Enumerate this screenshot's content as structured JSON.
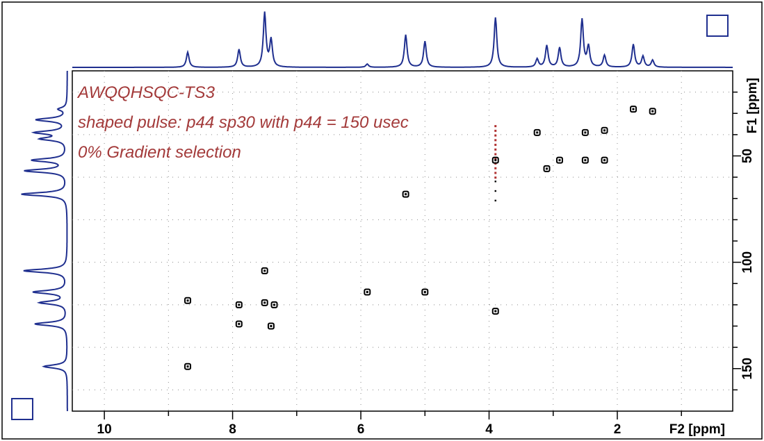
{
  "chart_data": {
    "type": "scatter",
    "subtype": "2D NMR HSQC contour map",
    "annotations": [
      "AWQQHSQC-TS3",
      "shaped pulse: p44 sp30 with  p44 = 150 usec",
      "0% Gradient selection"
    ],
    "xlabel": "F2 [ppm]",
    "ylabel": "F1 [ppm]",
    "xlim": [
      10.5,
      0.2
    ],
    "ylim": [
      10,
      170
    ],
    "x_reversed": true,
    "x_ticks": [
      "10",
      "8",
      "6",
      "4",
      "2"
    ],
    "y_ticks": [
      "50",
      "100",
      "150"
    ],
    "grid": true,
    "cross_peaks": [
      {
        "x": 1.75,
        "y": 28
      },
      {
        "x": 1.45,
        "y": 29
      },
      {
        "x": 2.2,
        "y": 38
      },
      {
        "x": 2.5,
        "y": 39
      },
      {
        "x": 3.25,
        "y": 39
      },
      {
        "x": 3.9,
        "y": 52
      },
      {
        "x": 2.9,
        "y": 52
      },
      {
        "x": 2.5,
        "y": 52
      },
      {
        "x": 2.2,
        "y": 52
      },
      {
        "x": 3.1,
        "y": 56
      },
      {
        "x": 5.3,
        "y": 68
      },
      {
        "x": 7.5,
        "y": 104
      },
      {
        "x": 5.9,
        "y": 114
      },
      {
        "x": 5.0,
        "y": 114
      },
      {
        "x": 8.7,
        "y": 118
      },
      {
        "x": 7.9,
        "y": 120
      },
      {
        "x": 7.5,
        "y": 119
      },
      {
        "x": 7.35,
        "y": 120
      },
      {
        "x": 3.9,
        "y": 123
      },
      {
        "x": 7.9,
        "y": 129
      },
      {
        "x": 7.4,
        "y": 130
      },
      {
        "x": 8.7,
        "y": 149
      }
    ],
    "artifact_streak": {
      "x": 3.9,
      "y_from": 36,
      "y_to": 62,
      "color": "#b03030"
    },
    "projection_f2": [
      {
        "x": 8.7,
        "h": 0.28
      },
      {
        "x": 7.9,
        "h": 0.33
      },
      {
        "x": 7.5,
        "h": 1.0
      },
      {
        "x": 7.4,
        "h": 0.5
      },
      {
        "x": 5.9,
        "h": 0.06
      },
      {
        "x": 5.3,
        "h": 0.6
      },
      {
        "x": 5.0,
        "h": 0.48
      },
      {
        "x": 3.9,
        "h": 0.92
      },
      {
        "x": 3.25,
        "h": 0.15
      },
      {
        "x": 3.1,
        "h": 0.4
      },
      {
        "x": 2.9,
        "h": 0.36
      },
      {
        "x": 2.55,
        "h": 0.88
      },
      {
        "x": 2.45,
        "h": 0.38
      },
      {
        "x": 2.2,
        "h": 0.22
      },
      {
        "x": 1.75,
        "h": 0.42
      },
      {
        "x": 1.6,
        "h": 0.2
      },
      {
        "x": 1.45,
        "h": 0.13
      }
    ],
    "projection_f1": [
      {
        "y": 28,
        "h": 0.15
      },
      {
        "y": 33,
        "h": 0.55
      },
      {
        "y": 39,
        "h": 0.55
      },
      {
        "y": 42,
        "h": 0.45
      },
      {
        "y": 52,
        "h": 0.62
      },
      {
        "y": 57,
        "h": 0.75
      },
      {
        "y": 68,
        "h": 0.82
      },
      {
        "y": 104,
        "h": 0.78
      },
      {
        "y": 114,
        "h": 0.6
      },
      {
        "y": 119,
        "h": 0.48
      },
      {
        "y": 129,
        "h": 0.58
      },
      {
        "y": 149,
        "h": 0.42
      }
    ],
    "colors": {
      "projection": "#1f2f8f",
      "frame": "#000000",
      "annotation": "#a33a3a",
      "peak": "#000000",
      "grid": "#8a8a8a"
    }
  }
}
